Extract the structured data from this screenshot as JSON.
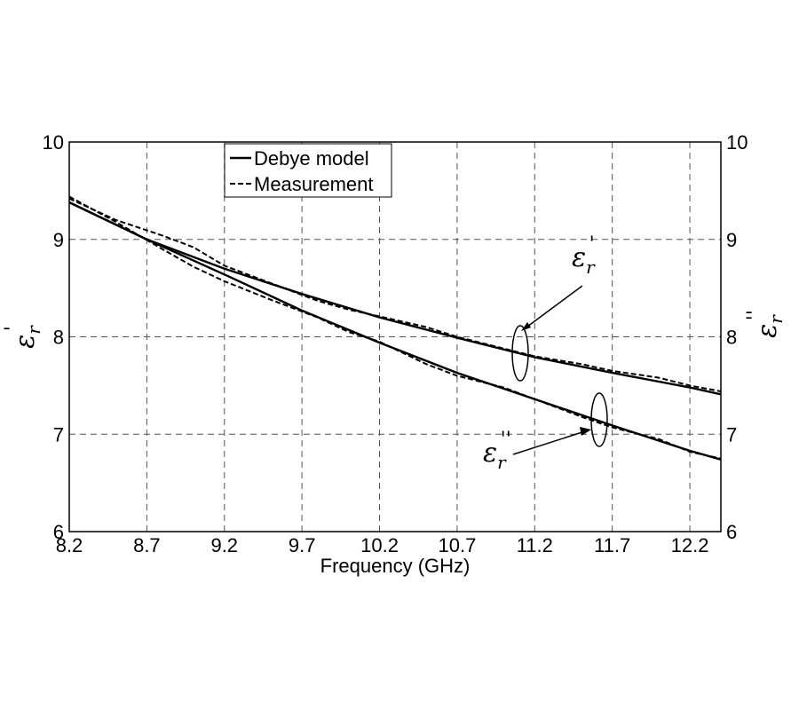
{
  "chart_data": {
    "type": "line",
    "xlabel": "Frequency (GHz)",
    "ylabel_left": "ε",
    "ylabel_left_sub": "r",
    "ylabel_left_prime": "'",
    "ylabel_right": "ε",
    "ylabel_right_sub": "r",
    "ylabel_right_prime": "''",
    "xlim": [
      8.2,
      12.4
    ],
    "ylim": [
      6,
      10
    ],
    "x_ticks": [
      8.2,
      8.7,
      9.2,
      9.7,
      10.2,
      10.7,
      11.2,
      11.7,
      12.2
    ],
    "x_tick_labels": [
      "8.2",
      "8.7",
      "9.2",
      "9.7",
      "10.2",
      "10.7",
      "11.2",
      "11.7",
      "12.2"
    ],
    "y_ticks": [
      6,
      7,
      8,
      9,
      10
    ],
    "y_tick_labels": [
      "6",
      "7",
      "8",
      "9",
      "10"
    ],
    "grid": true,
    "legend_position": "top-left",
    "legend": [
      {
        "label": "Debye model",
        "style": "solid"
      },
      {
        "label": "Measurement",
        "style": "dashed"
      }
    ],
    "annotations": [
      {
        "sym": "ε",
        "sub": "r",
        "prime": "'",
        "target": "eps-real"
      },
      {
        "sym": "ε",
        "sub": "r",
        "prime": "''",
        "target": "eps-imag"
      }
    ],
    "series": [
      {
        "id": "debye-real",
        "style": "solid",
        "x": [
          8.2,
          8.7,
          9.2,
          9.7,
          10.2,
          10.7,
          11.2,
          11.7,
          12.2,
          12.4
        ],
        "values": [
          9.38,
          9.0,
          8.7,
          8.44,
          8.2,
          7.99,
          7.79,
          7.63,
          7.48,
          7.41
        ]
      },
      {
        "id": "measurement-real",
        "style": "dashed",
        "x": [
          8.2,
          8.5,
          8.8,
          9.0,
          9.2,
          9.5,
          9.8,
          10.0,
          10.2,
          10.5,
          10.7,
          11.0,
          11.2,
          11.5,
          11.7,
          12.0,
          12.2,
          12.4
        ],
        "values": [
          9.42,
          9.2,
          9.04,
          8.92,
          8.73,
          8.55,
          8.37,
          8.28,
          8.21,
          8.1,
          8.0,
          7.88,
          7.8,
          7.72,
          7.65,
          7.58,
          7.5,
          7.44
        ]
      },
      {
        "id": "debye-imag",
        "style": "solid",
        "x": [
          8.2,
          8.7,
          9.2,
          9.7,
          10.2,
          10.7,
          11.2,
          11.7,
          12.2,
          12.4
        ],
        "values": [
          9.38,
          9.0,
          8.64,
          8.27,
          7.94,
          7.63,
          7.36,
          7.09,
          6.83,
          6.74
        ]
      },
      {
        "id": "measurement-imag",
        "style": "dashed",
        "x": [
          8.2,
          8.5,
          8.8,
          9.0,
          9.2,
          9.5,
          9.8,
          10.0,
          10.2,
          10.5,
          10.7,
          11.0,
          11.2,
          11.5,
          11.7,
          12.0,
          12.2,
          12.4
        ],
        "values": [
          9.44,
          9.18,
          8.9,
          8.72,
          8.57,
          8.38,
          8.2,
          8.05,
          7.95,
          7.72,
          7.6,
          7.48,
          7.36,
          7.18,
          7.07,
          6.95,
          6.82,
          6.75
        ]
      }
    ]
  }
}
